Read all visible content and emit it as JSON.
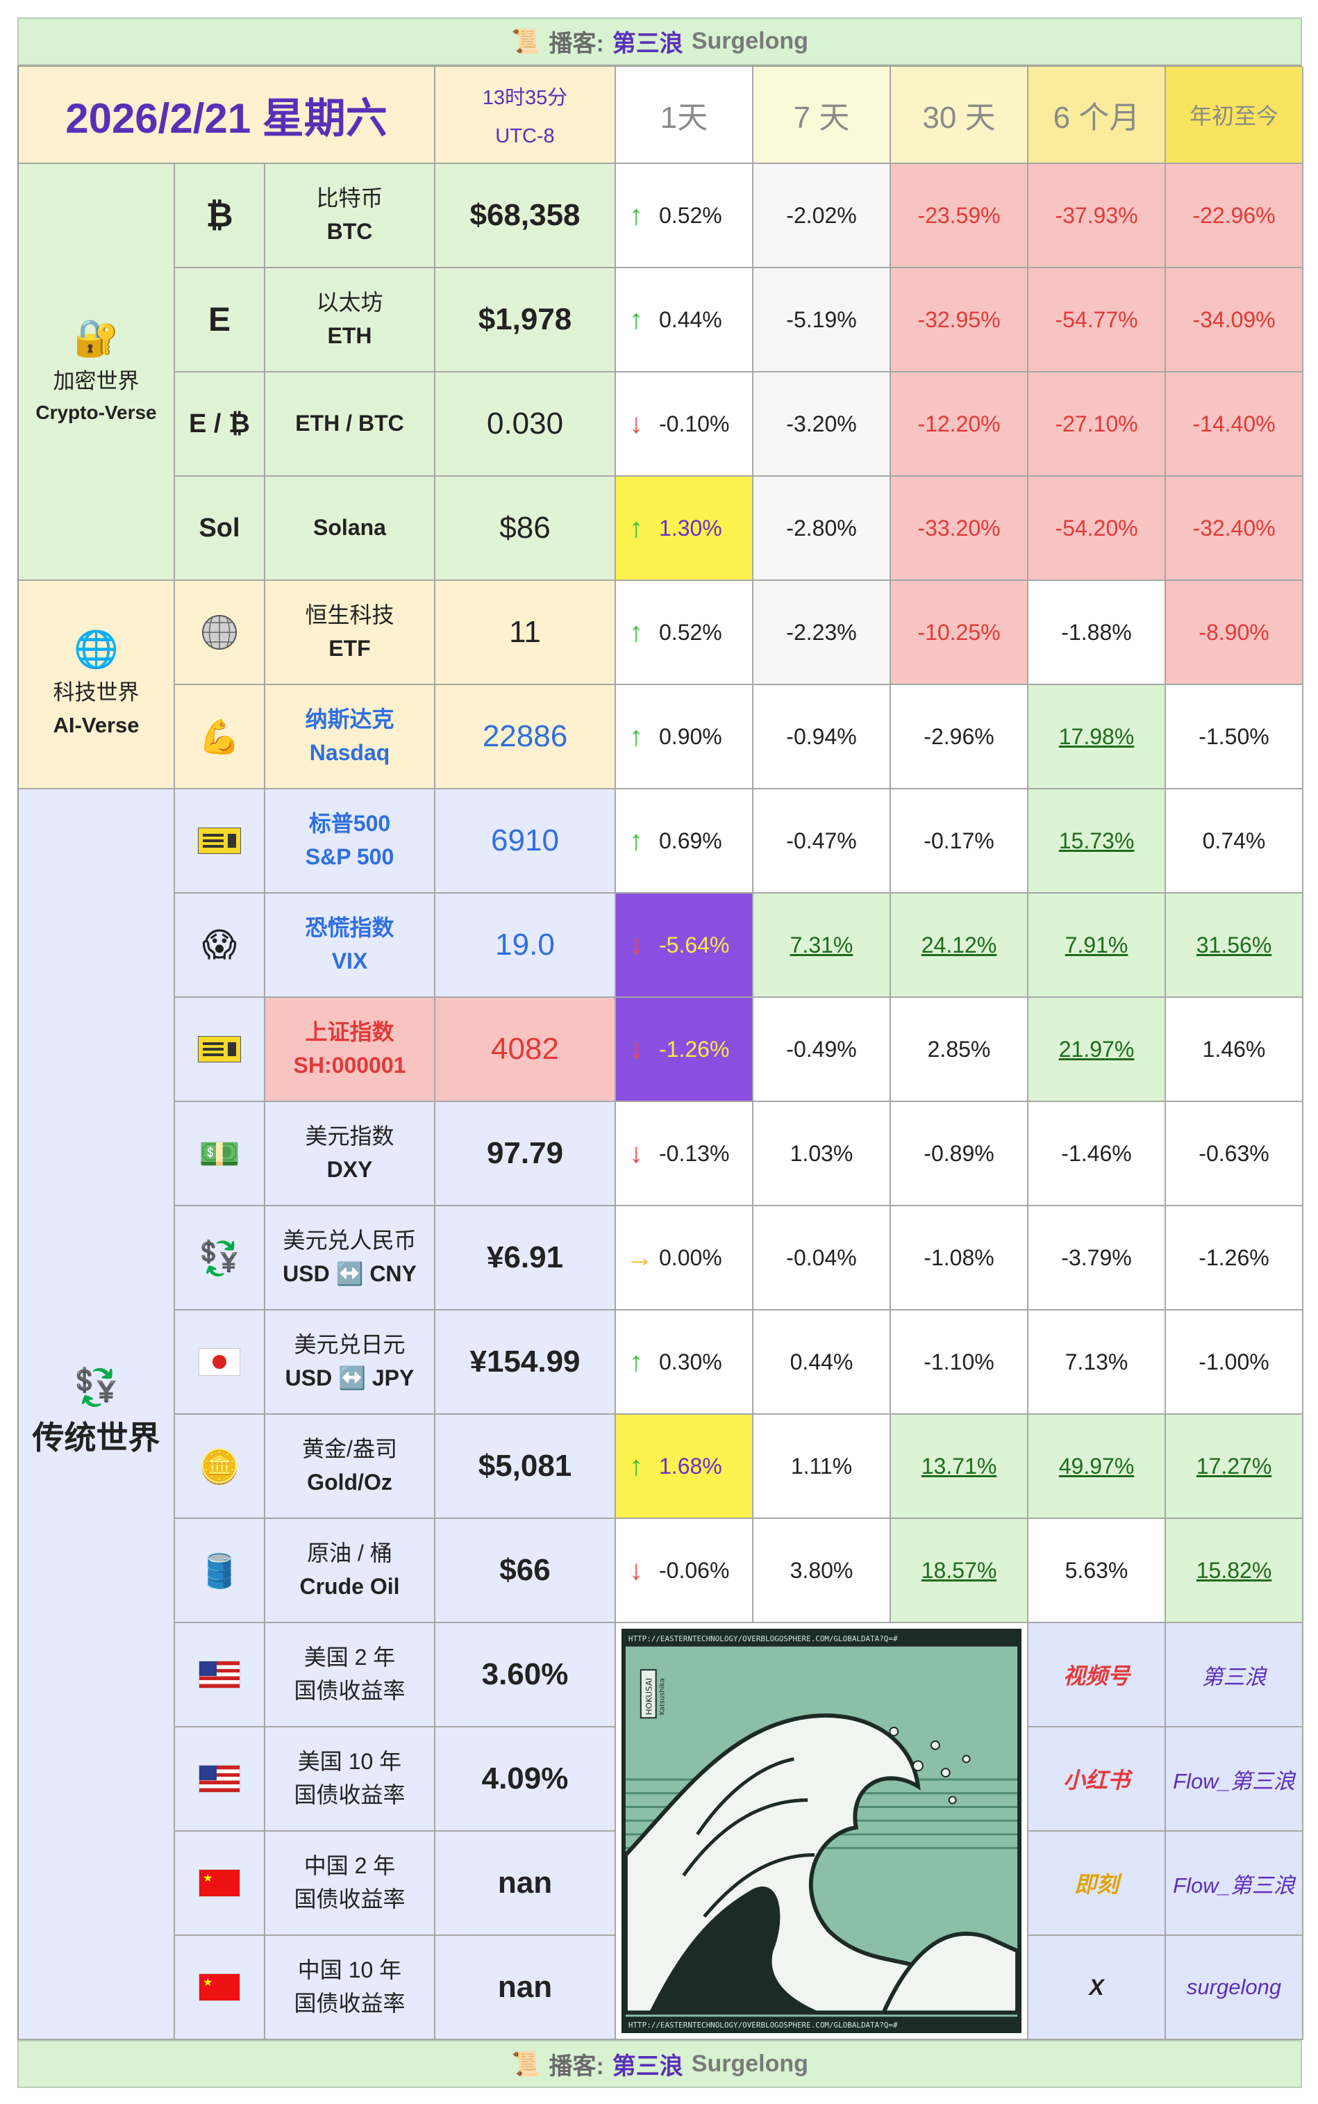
{
  "banner": {
    "icon": "📜",
    "prefix": "播客:",
    "name_cn": "第三浪",
    "name_en": "Surgelong"
  },
  "header": {
    "date": "2026/2/21 星期六",
    "time": "13时35分",
    "timezone": "UTC-8",
    "periods": [
      "1天",
      "7 天",
      "30 天",
      "6 个月",
      "年初至今"
    ]
  },
  "sections": {
    "crypto": {
      "icon": "🔐",
      "label_cn": "加密世界",
      "label_en": "Crypto-Verse"
    },
    "tech": {
      "icon": "🌐",
      "label_cn": "科技世界",
      "label_en": "AI-Verse"
    },
    "trad": {
      "icon": "💱",
      "label_cn": "传统世界"
    }
  },
  "rows": [
    {
      "icon": "₿",
      "name_cn": "比特币",
      "name_en": "BTC",
      "price": "$68,358",
      "d1": "0.52%",
      "d1_dir": "↑",
      "d7": "-2.02%",
      "d30": "-23.59%",
      "m6": "-37.93%",
      "ytd": "-22.96%"
    },
    {
      "icon": "E",
      "name_cn": "以太坊",
      "name_en": "ETH",
      "price": "$1,978",
      "d1": "0.44%",
      "d1_dir": "↑",
      "d7": "-5.19%",
      "d30": "-32.95%",
      "m6": "-54.77%",
      "ytd": "-34.09%"
    },
    {
      "icon": "E / ₿",
      "name_cn": "",
      "name_en": "ETH / BTC",
      "price": "0.030",
      "d1": "-0.10%",
      "d1_dir": "↓",
      "d7": "-3.20%",
      "d30": "-12.20%",
      "m6": "-27.10%",
      "ytd": "-14.40%"
    },
    {
      "icon": "Sol",
      "name_cn": "",
      "name_en": "Solana",
      "price": "$86",
      "d1": "1.30%",
      "d1_dir": "↑",
      "d7": "-2.80%",
      "d30": "-33.20%",
      "m6": "-54.20%",
      "ytd": "-32.40%"
    },
    {
      "icon": "disco-ball-icon",
      "name_cn": "恒生科技",
      "name_en": "ETF",
      "price": "11",
      "d1": "0.52%",
      "d1_dir": "↑",
      "d7": "-2.23%",
      "d30": "-10.25%",
      "m6": "-1.88%",
      "ytd": "-8.90%"
    },
    {
      "icon": "💪",
      "name_cn": "纳斯达克",
      "name_en": "Nasdaq",
      "price": "22886",
      "d1": "0.90%",
      "d1_dir": "↑",
      "d7": "-0.94%",
      "d30": "-2.96%",
      "m6": "17.98%",
      "ytd": "-1.50%"
    },
    {
      "icon": "ticket-icon",
      "name_cn": "标普500",
      "name_en": "S&P 500",
      "price": "6910",
      "d1": "0.69%",
      "d1_dir": "↑",
      "d7": "-0.47%",
      "d30": "-0.17%",
      "m6": "15.73%",
      "ytd": "0.74%"
    },
    {
      "icon": "😱",
      "name_cn": "恐慌指数",
      "name_en": "VIX",
      "price": "19.0",
      "d1": "-5.64%",
      "d1_dir": "↓",
      "d7": "7.31%",
      "d30": "24.12%",
      "m6": "7.91%",
      "ytd": "31.56%"
    },
    {
      "icon": "ticket-icon",
      "name_cn": "上证指数",
      "name_en": "SH:000001",
      "price": "4082",
      "d1": "-1.26%",
      "d1_dir": "↓",
      "d7": "-0.49%",
      "d30": "2.85%",
      "m6": "21.97%",
      "ytd": "1.46%"
    },
    {
      "icon": "💵",
      "name_cn": "美元指数",
      "name_en": "DXY",
      "price": "97.79",
      "d1": "-0.13%",
      "d1_dir": "↓",
      "d7": "1.03%",
      "d30": "-0.89%",
      "m6": "-1.46%",
      "ytd": "-0.63%"
    },
    {
      "icon": "💱",
      "name_cn": "美元兑人民币",
      "name_en": "USD ↔️ CNY",
      "price": "¥6.91",
      "d1": "0.00%",
      "d1_dir": "→",
      "d7": "-0.04%",
      "d30": "-1.08%",
      "m6": "-3.79%",
      "ytd": "-1.26%"
    },
    {
      "icon": "flag-jp-icon",
      "name_cn": "美元兑日元",
      "name_en": "USD ↔️ JPY",
      "price": "¥154.99",
      "d1": "0.30%",
      "d1_dir": "↑",
      "d7": "0.44%",
      "d30": "-1.10%",
      "m6": "7.13%",
      "ytd": "-1.00%"
    },
    {
      "icon": "🪙",
      "name_cn": "黄金/盎司",
      "name_en": "Gold/Oz",
      "price": "$5,081",
      "d1": "1.68%",
      "d1_dir": "↑",
      "d7": "1.11%",
      "d30": "13.71%",
      "m6": "49.97%",
      "ytd": "17.27%"
    },
    {
      "icon": "🛢️",
      "name_cn": "原油 / 桶",
      "name_en": "Crude Oil",
      "price": "$66",
      "d1": "-0.06%",
      "d1_dir": "↓",
      "d7": "3.80%",
      "d30": "18.57%",
      "m6": "5.63%",
      "ytd": "15.82%"
    },
    {
      "icon": "flag-us-icon",
      "name_cn": "美国 2 年",
      "name_en": "国债收益率",
      "price": "3.60%"
    },
    {
      "icon": "flag-us-icon",
      "name_cn": "美国 10 年",
      "name_en": "国债收益率",
      "price": "4.09%"
    },
    {
      "icon": "flag-cn-icon",
      "name_cn": "中国 2 年",
      "name_en": "国债收益率",
      "price": "nan"
    },
    {
      "icon": "flag-cn-icon",
      "name_cn": "中国 10 年",
      "name_en": "国债收益率",
      "price": "nan"
    }
  ],
  "social": [
    {
      "platform": "视频号",
      "handle": "第三浪",
      "color": "#e23a3a"
    },
    {
      "platform": "小红书",
      "handle": "Flow_第三浪",
      "color": "#e23a3a"
    },
    {
      "platform": "即刻",
      "handle": "Flow_第三浪",
      "color": "#e0a400"
    },
    {
      "platform": "X",
      "handle": "surgelong",
      "color": "#222222"
    }
  ],
  "artwork": {
    "url_text": "HTTP://EASTERNTECHNOLOGY/OVERBLOGOSPHERE.COM/GLOBALDATA?Q=#",
    "seal": "HOKUSAI",
    "sub": "Katsushika"
  }
}
